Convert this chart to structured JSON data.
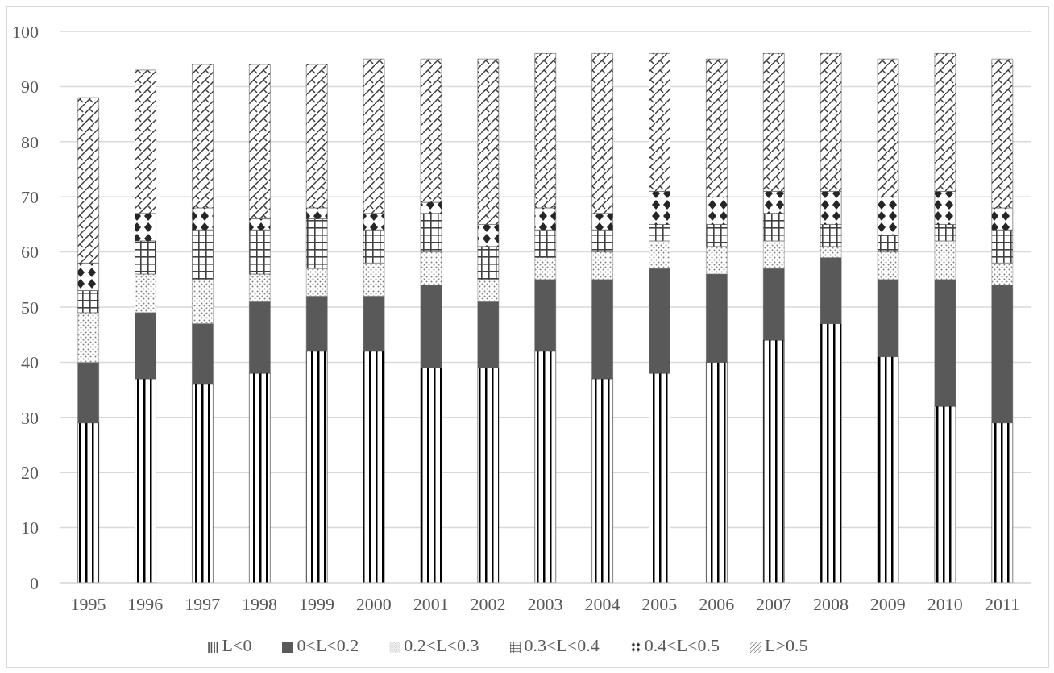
{
  "chart_data": {
    "type": "bar",
    "stacked": true,
    "categories": [
      "1995",
      "1996",
      "1997",
      "1998",
      "1999",
      "2000",
      "2001",
      "2002",
      "2003",
      "2004",
      "2005",
      "2006",
      "2007",
      "2008",
      "2009",
      "2010",
      "2011"
    ],
    "series": [
      {
        "name": "L<0",
        "color": "#000000",
        "values": [
          29,
          37,
          36,
          38,
          42,
          42,
          39,
          39,
          42,
          37,
          38,
          40,
          44,
          47,
          41,
          32,
          29
        ]
      },
      {
        "name": "0<L<0.2",
        "color": "#595959",
        "values": [
          11,
          12,
          11,
          13,
          10,
          10,
          15,
          12,
          13,
          18,
          19,
          16,
          13,
          12,
          14,
          23,
          25
        ]
      },
      {
        "name": "0.2<L<0.3",
        "color": "#7f7f7f",
        "values": [
          9,
          7,
          8,
          5,
          5,
          6,
          6,
          4,
          4,
          5,
          5,
          5,
          5,
          2,
          5,
          7,
          4
        ]
      },
      {
        "name": "0.3<L<0.4",
        "color": "#404040",
        "values": [
          4,
          6,
          9,
          8,
          9,
          6,
          7,
          6,
          5,
          4,
          3,
          4,
          5,
          4,
          3,
          3,
          6
        ]
      },
      {
        "name": "0.4<L<0.5",
        "color": "#262626",
        "values": [
          5,
          5,
          4,
          2,
          2,
          3,
          2,
          4,
          4,
          3,
          6,
          5,
          4,
          6,
          7,
          6,
          4
        ]
      },
      {
        "name": "L>0.5",
        "color": "#3a3a3a",
        "values": [
          30,
          26,
          26,
          28,
          26,
          28,
          26,
          30,
          28,
          29,
          25,
          25,
          25,
          25,
          25,
          25,
          27
        ]
      }
    ],
    "ylim": [
      0,
      100
    ],
    "yticks": [
      0,
      10,
      20,
      30,
      40,
      50,
      60,
      70,
      80,
      90,
      100
    ],
    "grid": "y",
    "legend": "bottom"
  }
}
